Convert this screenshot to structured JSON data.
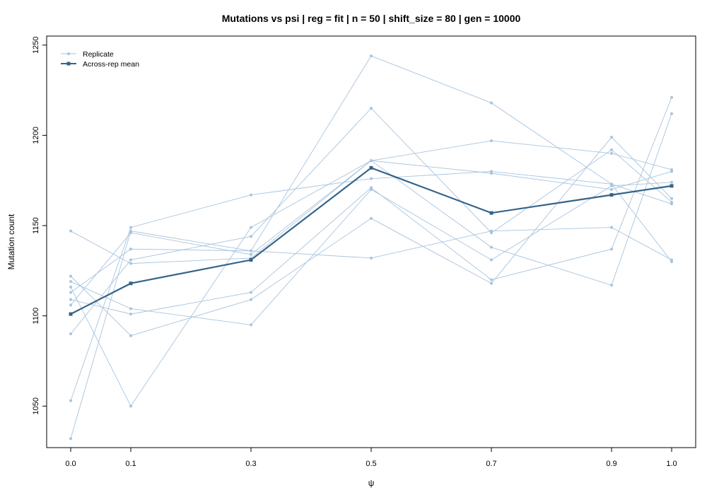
{
  "chart_data": {
    "type": "line",
    "title": "Mutations vs psi | reg = fit | n = 50 | shift_size = 80 | gen = 10000",
    "xlabel": "ψ",
    "ylabel": "Mutation count",
    "x": [
      0.0,
      0.1,
      0.3,
      0.5,
      0.7,
      0.9,
      1.0
    ],
    "x_tick_labels": [
      "0.0",
      "0.1",
      "0.3",
      "0.5",
      "0.7",
      "0.9",
      "1.0"
    ],
    "xlim": [
      -0.04,
      1.04
    ],
    "ylim": [
      1027,
      1255
    ],
    "y_ticks": [
      1050,
      1100,
      1150,
      1200,
      1250
    ],
    "legend_placement": "top-left",
    "legend": {
      "replicate_label": "Replicate",
      "mean_label": "Across-rep mean"
    },
    "colors": {
      "replicate": "#a8c4de",
      "mean": "#35648a",
      "axis": "#000000"
    },
    "series": [
      {
        "name": "Replicate",
        "role": "replicate",
        "values": [
          1032,
          1147,
          1136,
          1244,
          1218,
          1173,
          1162
        ]
      },
      {
        "name": "Replicate",
        "role": "replicate",
        "values": [
          1053,
          1149,
          1167,
          1176,
          1180,
          1173,
          1130
        ]
      },
      {
        "name": "Replicate",
        "role": "replicate",
        "values": [
          1090,
          1131,
          1144,
          1215,
          1146,
          1192,
          1163
        ]
      },
      {
        "name": "Replicate",
        "role": "replicate",
        "values": [
          1106,
          1146,
          1134,
          1186,
          1197,
          1190,
          1181
        ]
      },
      {
        "name": "Replicate",
        "role": "replicate",
        "values": [
          1109,
          1101,
          1113,
          1171,
          1120,
          1137,
          1221
        ]
      },
      {
        "name": "Replicate",
        "role": "replicate",
        "values": [
          1113,
          1137,
          1136,
          1132,
          1147,
          1149,
          1131
        ]
      },
      {
        "name": "Replicate",
        "role": "replicate",
        "values": [
          1116,
          1050,
          1149,
          1186,
          1138,
          1117,
          1212
        ]
      },
      {
        "name": "Replicate",
        "role": "replicate",
        "values": [
          1119,
          1104,
          1095,
          1170,
          1131,
          1172,
          1174
        ]
      },
      {
        "name": "Replicate",
        "role": "replicate",
        "values": [
          1122,
          1089,
          1109,
          1154,
          1118,
          1199,
          1165
        ]
      },
      {
        "name": "Replicate",
        "role": "replicate",
        "values": [
          1147,
          1129,
          1132,
          1186,
          1179,
          1170,
          1180
        ]
      },
      {
        "name": "Across-rep mean",
        "role": "mean",
        "values": [
          1101,
          1118,
          1131,
          1182,
          1157,
          1167,
          1172
        ]
      }
    ]
  }
}
